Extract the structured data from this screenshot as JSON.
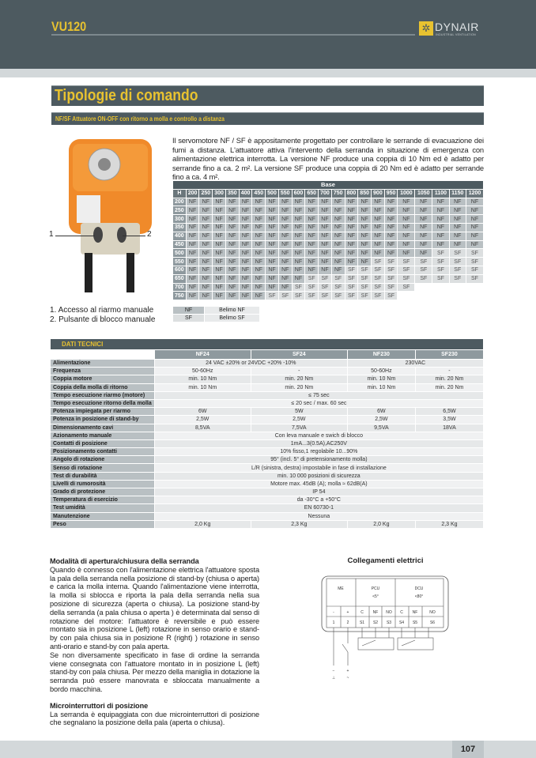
{
  "header": {
    "doc_title": "VU120",
    "logo_text": "DYNAIR",
    "logo_sub": "INDUSTRIAL VENTILATION"
  },
  "section": {
    "title": "Tipologie di comando",
    "subtitle": "NF/SF  Attuatore ON-OFF con ritorno a molla e controllo a distanza"
  },
  "product": {
    "callout_1": "1",
    "callout_2": "2",
    "notes": [
      "1.  Accesso al riarmo manuale",
      "2.  Pulsante di blocco manuale"
    ]
  },
  "description": "Il servomotore NF / SF è appositamente progettato per controllare le serrande di evacuazione dei fumi a distanza. L'attuatore attiva l'intervento della serranda in situazione di emergenza con alimentazione elettrica interrotta. La versione  NF produce una coppia di 10 Nm ed è adatto per serrande fino a ca. 2 m². La versione  SF produce una coppia di 20 Nm ed è adatto per serrande fino a ca. 4 m².",
  "base_grid": {
    "title": "Base",
    "corner": "H",
    "columns": [
      "200",
      "250",
      "300",
      "350",
      "400",
      "450",
      "500",
      "550",
      "600",
      "650",
      "700",
      "750",
      "800",
      "850",
      "900",
      "950",
      "1000",
      "1050",
      "1100",
      "1150",
      "1200"
    ],
    "rows": [
      {
        "h": "200",
        "nf": 21,
        "sf": 0
      },
      {
        "h": "250",
        "nf": 21,
        "sf": 0
      },
      {
        "h": "300",
        "nf": 21,
        "sf": 0
      },
      {
        "h": "350",
        "nf": 21,
        "sf": 0
      },
      {
        "h": "400",
        "nf": 21,
        "sf": 0
      },
      {
        "h": "450",
        "nf": 21,
        "sf": 0
      },
      {
        "h": "500",
        "nf": 18,
        "sf": 3
      },
      {
        "h": "550",
        "nf": 14,
        "sf": 7
      },
      {
        "h": "600",
        "nf": 12,
        "sf": 9
      },
      {
        "h": "650",
        "nf": 9,
        "sf": 12
      },
      {
        "h": "700",
        "nf": 8,
        "sf": 9
      },
      {
        "h": "750",
        "nf": 6,
        "sf": 10
      }
    ],
    "nf_label": "NF",
    "sf_label": "SF"
  },
  "legend": [
    {
      "key": "NF",
      "value": "Belimo NF"
    },
    {
      "key": "SF",
      "value": "Belimo SF"
    }
  ],
  "tech": {
    "title": "DATI TECNICI",
    "columns": [
      "NF24",
      "SF24",
      "NF230",
      "SF230"
    ],
    "rows": [
      {
        "label": "Alimentazione",
        "cells": [
          {
            "t": "24 VAC ±20% or 24VDC +20% -10%",
            "s": 2
          },
          {
            "t": "230VAC",
            "s": 2
          }
        ]
      },
      {
        "label": "Frequenza",
        "cells": [
          {
            "t": "50-60Hz",
            "s": 1
          },
          {
            "t": "-",
            "s": 1
          },
          {
            "t": "50-60Hz",
            "s": 1
          },
          {
            "t": "-",
            "s": 1
          }
        ]
      },
      {
        "label": "Coppia motore",
        "cells": [
          {
            "t": "min. 10 Nm",
            "s": 1
          },
          {
            "t": "min. 20 Nm",
            "s": 1
          },
          {
            "t": "min. 10 Nm",
            "s": 1
          },
          {
            "t": "min. 20 Nm",
            "s": 1
          }
        ]
      },
      {
        "label": "Coppia della molla di ritorno",
        "cells": [
          {
            "t": "min. 10 Nm",
            "s": 1
          },
          {
            "t": "min. 20 Nm",
            "s": 1
          },
          {
            "t": "min. 10 Nm",
            "s": 1
          },
          {
            "t": "min. 20 Nm",
            "s": 1
          }
        ]
      },
      {
        "label": "Tempo esecuzione riarmo (motore)",
        "cells": [
          {
            "t": "≤ 75 sec",
            "s": 4
          }
        ]
      },
      {
        "label": "Tempo esecuzione ritorno della molla",
        "cells": [
          {
            "t": "≤ 20 sec / max. 60 sec",
            "s": 4
          }
        ]
      },
      {
        "label": "Potenza impiegata per  riarmo",
        "cells": [
          {
            "t": "6W",
            "s": 1
          },
          {
            "t": "5W",
            "s": 1
          },
          {
            "t": "6W",
            "s": 1
          },
          {
            "t": "6,5W",
            "s": 1
          }
        ]
      },
      {
        "label": "Potenza in posizione di stand-by",
        "cells": [
          {
            "t": "2,5W",
            "s": 1
          },
          {
            "t": "2,5W",
            "s": 1
          },
          {
            "t": "2,5W",
            "s": 1
          },
          {
            "t": "3,5W",
            "s": 1
          }
        ]
      },
      {
        "label": "Dimensionamento cavi",
        "cells": [
          {
            "t": "8,5VA",
            "s": 1
          },
          {
            "t": "7,5VA",
            "s": 1
          },
          {
            "t": "9,5VA",
            "s": 1
          },
          {
            "t": "18VA",
            "s": 1
          }
        ]
      },
      {
        "label": "Azionamento manuale",
        "cells": [
          {
            "t": "Con leva manuale e swich di blocco",
            "s": 4
          }
        ]
      },
      {
        "label": "Contatti di posizione",
        "cells": [
          {
            "t": "1mA...3(0.5A),AC250V",
            "s": 4
          }
        ]
      },
      {
        "label": "Posizionamento contatti",
        "cells": [
          {
            "t": "10% fisso,1 regolabile 10...90%",
            "s": 4
          }
        ]
      },
      {
        "label": "Angolo di rotazione",
        "cells": [
          {
            "t": "95° (incl. 5° di pretensionamento molla)",
            "s": 4
          }
        ]
      },
      {
        "label": "Senso di rotazione",
        "cells": [
          {
            "t": "L/R (sinistra, destra) impostabile in fase di installazione",
            "s": 4
          }
        ]
      },
      {
        "label": "Test di durabilità",
        "cells": [
          {
            "t": "min. 10 000 posizioni di sicurezza",
            "s": 4
          }
        ]
      },
      {
        "label": "Livelli di rumorosità",
        "cells": [
          {
            "t": "Motore max. 45dB (A); molla ≈ 62dB(A)",
            "s": 4
          }
        ]
      },
      {
        "label": "Grado di protezione",
        "cells": [
          {
            "t": "IP 54",
            "s": 4
          }
        ]
      },
      {
        "label": "Temperatura di esercizio",
        "cells": [
          {
            "t": "da -30°C a +50°C",
            "s": 4
          }
        ]
      },
      {
        "label": "Test umidità",
        "cells": [
          {
            "t": "EN 60730-1",
            "s": 4
          }
        ]
      },
      {
        "label": "Manutenzione",
        "cells": [
          {
            "t": "Nessuna",
            "s": 4
          }
        ]
      },
      {
        "label": "Peso",
        "cells": [
          {
            "t": "2,0 Kg",
            "s": 1
          },
          {
            "t": "2,3 Kg",
            "s": 1
          },
          {
            "t": "2,0 Kg",
            "s": 1
          },
          {
            "t": "2,3 Kg",
            "s": 1
          }
        ]
      }
    ]
  },
  "body": {
    "h1": "Modalità di apertura/chiusura della serranda",
    "p1": "Quando è connesso con l'alimentazione elettrica  l'attuatore sposta la pala della serranda nella posizione di stand-by (chiusa o aperta) e carica la molla interna. Quando l'alimentazione viene interrotta, la molla si sblocca e riporta la pala della serranda nella sua posizione di sicurezza (aperta o chiusa). La posizione stand-by della serranda (a pala chiusa o aperta ) è determinata dal senso di rotazione del motore: l'attuatore è reversibile e può essere montato sia in posizione L (left) rotazione in senso orario e stand-by con pala chiusa sia in posizione R (right) ) rotazione in senso anti-orario e stand-by con pala aperta.",
    "p2": "Se non diversamente specificato in fase di ordine la serranda viene consegnata con l'attuatore montato in in posizione L (left) stand-by con pala chiusa. Per mezzo della maniglia in dotazione la serranda può essere manovrata e sbloccata manualmente a bordo macchina.",
    "h2": "Microinterruttori di posizione",
    "p3": "La serranda è equipaggiata con due microinterruttori di posizione che segnalano la posizione della pala (aperta o chiusa)."
  },
  "diagram": {
    "title": "Collegamenti elettrici",
    "groups": [
      "ME",
      "PCU",
      "DCU"
    ],
    "group_sub": [
      "",
      "<5°",
      "<80°"
    ],
    "terminals": [
      "-",
      "+",
      "C",
      "NF",
      "NO",
      "C",
      "NF",
      "NO"
    ],
    "numbers": [
      "1",
      "2",
      "S1",
      "S2",
      "S3",
      "S4",
      "S5",
      "S6"
    ],
    "supply": [
      "−",
      "+",
      "⊥",
      "~"
    ]
  },
  "footer": {
    "page": "107"
  },
  "colors": {
    "band": "#4d5a60",
    "accent": "#e8c230"
  }
}
